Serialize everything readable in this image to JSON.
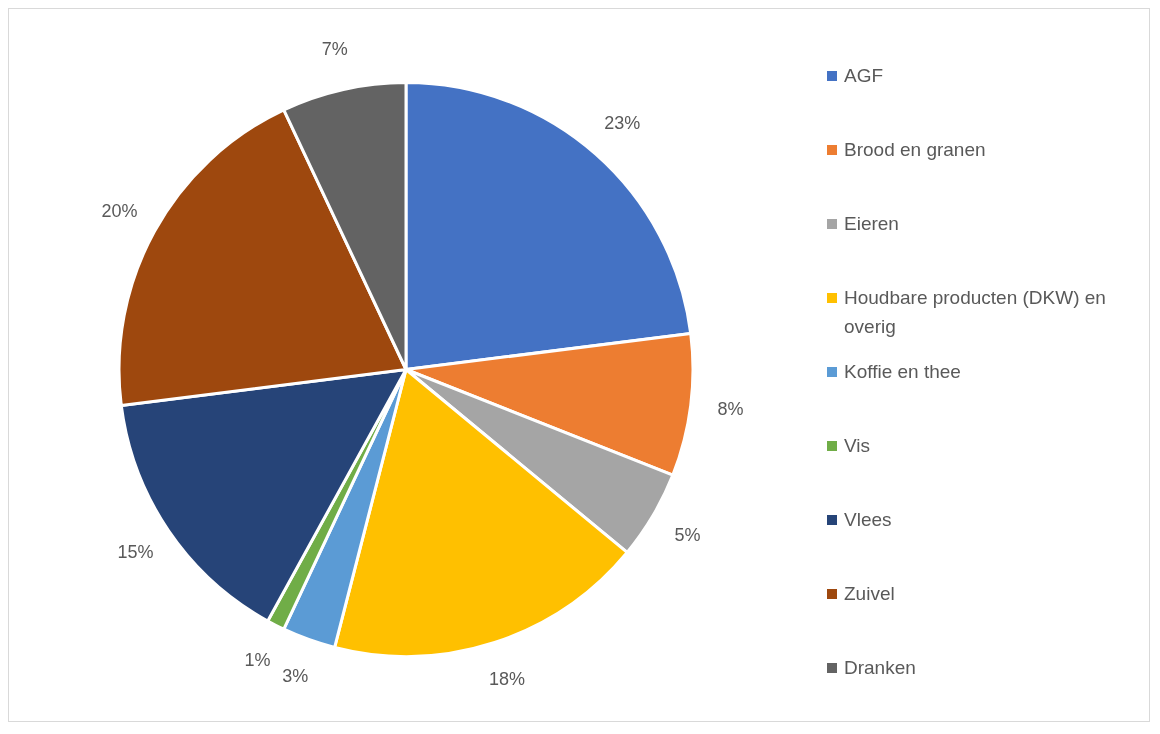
{
  "chart_data": {
    "type": "pie",
    "categories": [
      "AGF",
      "Brood en granen",
      "Eieren",
      "Houdbare producten (DKW) en overig",
      "Koffie en thee",
      "Vis",
      "Vlees",
      "Zuivel",
      "Dranken"
    ],
    "values": [
      23,
      8,
      5,
      18,
      3,
      1,
      15,
      20,
      7
    ],
    "colors": [
      "#4472c4",
      "#ed7d31",
      "#a5a5a5",
      "#ffc000",
      "#5b9bd5",
      "#70ad47",
      "#264478",
      "#9e480e",
      "#636363"
    ],
    "value_labels": [
      "23%",
      "8%",
      "5%",
      "18%",
      "3%",
      "1%",
      "15%",
      "20%",
      "7%"
    ],
    "legend": "right"
  }
}
